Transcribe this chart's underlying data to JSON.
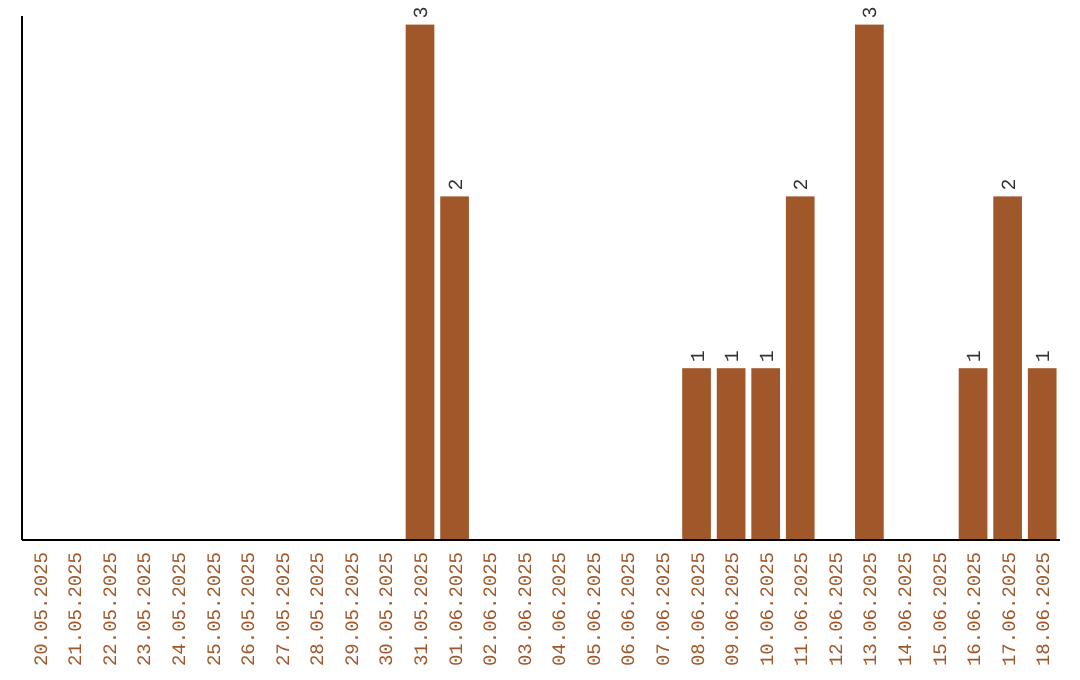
{
  "chart_data": {
    "type": "bar",
    "categories": [
      "20.05.2025",
      "21.05.2025",
      "22.05.2025",
      "23.05.2025",
      "24.05.2025",
      "25.05.2025",
      "26.05.2025",
      "27.05.2025",
      "28.05.2025",
      "29.05.2025",
      "30.05.2025",
      "31.05.2025",
      "01.06.2025",
      "02.06.2025",
      "03.06.2025",
      "04.06.2025",
      "05.06.2025",
      "06.06.2025",
      "07.06.2025",
      "08.06.2025",
      "09.06.2025",
      "10.06.2025",
      "11.06.2025",
      "12.06.2025",
      "13.06.2025",
      "14.06.2025",
      "15.06.2025",
      "16.06.2025",
      "17.06.2025",
      "18.06.2025"
    ],
    "values": [
      0,
      0,
      0,
      0,
      0,
      0,
      0,
      0,
      0,
      0,
      0,
      3,
      2,
      0,
      0,
      0,
      0,
      0,
      0,
      1,
      1,
      1,
      2,
      0,
      3,
      0,
      0,
      1,
      2,
      1
    ],
    "value_labels": [
      null,
      null,
      null,
      null,
      null,
      null,
      null,
      null,
      null,
      null,
      null,
      "3",
      "2",
      null,
      null,
      null,
      null,
      null,
      null,
      "1",
      "1",
      "1",
      "2",
      null,
      "3",
      null,
      null,
      "1",
      "2",
      "1"
    ],
    "color": "#a0582a",
    "ylim": [
      0,
      3.05
    ],
    "tick_labels": "x"
  }
}
